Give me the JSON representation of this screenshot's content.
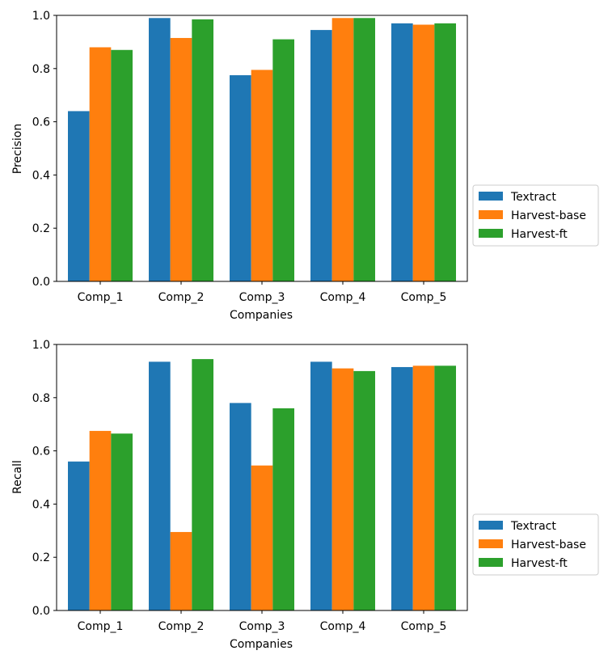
{
  "chart_data": [
    {
      "type": "bar",
      "title": "",
      "xlabel": "Companies",
      "ylabel": "Precision",
      "ylim": [
        0,
        1.0
      ],
      "yticks": [
        "0.0",
        "0.2",
        "0.4",
        "0.6",
        "0.8",
        "1.0"
      ],
      "grid": false,
      "legend_position": "outside-right",
      "categories": [
        "Comp_1",
        "Comp_2",
        "Comp_3",
        "Comp_4",
        "Comp_5"
      ],
      "series": [
        {
          "name": "Textract",
          "color": "#1f77b4",
          "values": [
            0.64,
            0.99,
            0.775,
            0.945,
            0.97
          ]
        },
        {
          "name": "Harvest-base",
          "color": "#ff7f0e",
          "values": [
            0.88,
            0.915,
            0.795,
            0.99,
            0.965
          ]
        },
        {
          "name": "Harvest-ft",
          "color": "#2ca02c",
          "values": [
            0.87,
            0.985,
            0.91,
            0.99,
            0.97
          ]
        }
      ]
    },
    {
      "type": "bar",
      "title": "",
      "xlabel": "Companies",
      "ylabel": "Recall",
      "ylim": [
        0,
        1.0
      ],
      "yticks": [
        "0.0",
        "0.2",
        "0.4",
        "0.6",
        "0.8",
        "1.0"
      ],
      "grid": false,
      "legend_position": "outside-right",
      "categories": [
        "Comp_1",
        "Comp_2",
        "Comp_3",
        "Comp_4",
        "Comp_5"
      ],
      "series": [
        {
          "name": "Textract",
          "color": "#1f77b4",
          "values": [
            0.56,
            0.935,
            0.78,
            0.935,
            0.915
          ]
        },
        {
          "name": "Harvest-base",
          "color": "#ff7f0e",
          "values": [
            0.675,
            0.295,
            0.545,
            0.91,
            0.92
          ]
        },
        {
          "name": "Harvest-ft",
          "color": "#2ca02c",
          "values": [
            0.665,
            0.945,
            0.76,
            0.9,
            0.92
          ]
        }
      ]
    }
  ]
}
